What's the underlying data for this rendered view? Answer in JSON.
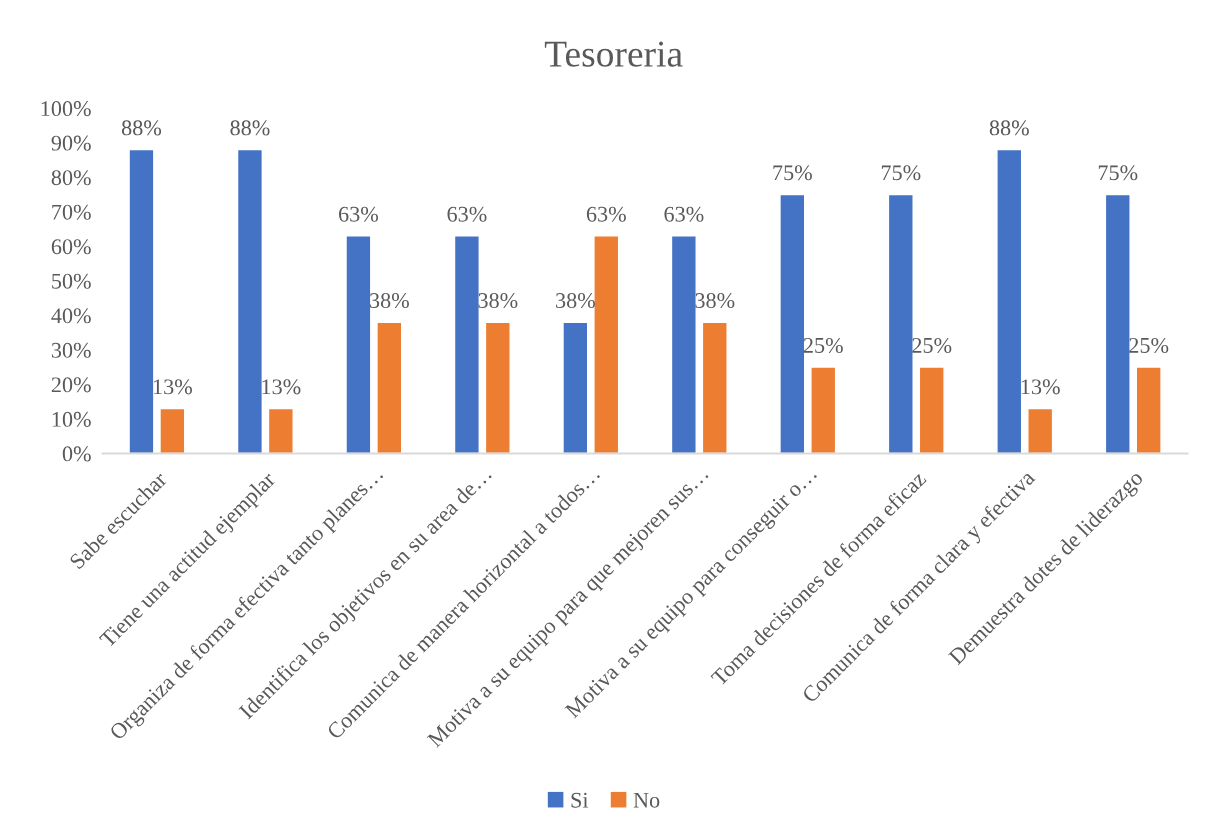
{
  "chart_data": {
    "type": "bar",
    "title": "Tesoreria",
    "categories": [
      "Sabe escuchar",
      "Tiene una actitud ejemplar",
      "Organiza de forma efectiva tanto planes…",
      "Identifica los objetivos en su area de…",
      "Comunica de manera horizontal a todos…",
      "Motiva a su equipo para que mejoren sus…",
      "Motiva a su equipo para conseguir o…",
      "Toma decisiones de forma eficaz",
      "Comunica de forma clara y efectiva",
      "Demuestra dotes de liderazgo"
    ],
    "series": [
      {
        "name": "Si",
        "color": "#4472c4",
        "values": [
          88,
          88,
          63,
          63,
          38,
          63,
          75,
          75,
          88,
          75
        ],
        "value_labels": [
          "88%",
          "88%",
          "63%",
          "63%",
          "38%",
          "63%",
          "75%",
          "75%",
          "88%",
          "75%"
        ]
      },
      {
        "name": "No",
        "color": "#ed7d31",
        "values": [
          13,
          13,
          38,
          38,
          63,
          38,
          25,
          25,
          13,
          25
        ],
        "value_labels": [
          "13%",
          "13%",
          "38%",
          "38%",
          "63%",
          "38%",
          "25%",
          "25%",
          "13%",
          "25%"
        ]
      }
    ],
    "ylim": [
      0,
      100
    ],
    "yticks": [
      {
        "value": 0,
        "label": "0%"
      },
      {
        "value": 10,
        "label": "10%"
      },
      {
        "value": 20,
        "label": "20%"
      },
      {
        "value": 30,
        "label": "30%"
      },
      {
        "value": 40,
        "label": "40%"
      },
      {
        "value": 50,
        "label": "50%"
      },
      {
        "value": 60,
        "label": "60%"
      },
      {
        "value": 70,
        "label": "70%"
      },
      {
        "value": 80,
        "label": "80%"
      },
      {
        "value": 90,
        "label": "90%"
      },
      {
        "value": 100,
        "label": "100%"
      }
    ],
    "legend": "bottom"
  }
}
